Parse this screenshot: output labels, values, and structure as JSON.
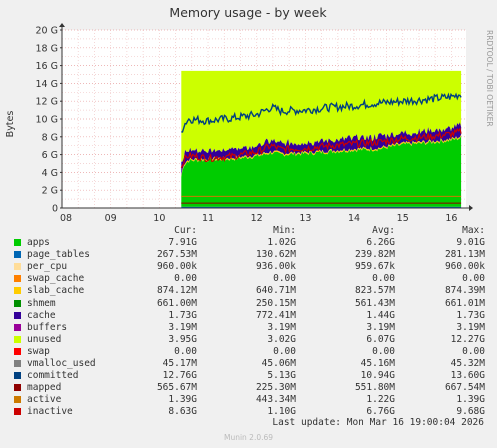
{
  "chart_data": {
    "type": "area",
    "title": "Memory usage - by week",
    "ylabel": "Bytes",
    "side_label": "RRDTOOL / TOBI OETIKER",
    "ylim": [
      0,
      20
    ],
    "y_ticks": [
      "0",
      "2 G",
      "4 G",
      "6 G",
      "8 G",
      "10 G",
      "12 G",
      "14 G",
      "16 G",
      "18 G",
      "20 G"
    ],
    "xlim": [
      8,
      16.3
    ],
    "x_ticks": [
      "08",
      "09",
      "10",
      "11",
      "12",
      "13",
      "14",
      "15",
      "16"
    ],
    "data_start": 10.45,
    "series": [
      {
        "name": "apps",
        "color": "#00cc00",
        "cur": "7.91G",
        "min": "1.02G",
        "avg": "6.26G",
        "max": "9.01G",
        "x": [
          10.45,
          10.5,
          10.6,
          11.0,
          11.5,
          12.0,
          12.3,
          12.5,
          13.0,
          13.5,
          14.0,
          14.5,
          15.0,
          15.5,
          16.0,
          16.2
        ],
        "y": [
          3.5,
          4.8,
          5.3,
          5.4,
          5.5,
          5.8,
          6.2,
          6.0,
          6.1,
          6.3,
          6.5,
          6.6,
          7.1,
          7.3,
          7.6,
          7.9
        ]
      },
      {
        "name": "page_tables",
        "color": "#0066b3",
        "cur": "267.53M",
        "min": "130.62M",
        "avg": "239.82M",
        "max": "281.13M"
      },
      {
        "name": "per_cpu",
        "color": "#ffdd99",
        "cur": "960.00k",
        "min": "936.00k",
        "avg": "959.67k",
        "max": "960.00k"
      },
      {
        "name": "swap_cache",
        "color": "#ff8000",
        "cur": "0.00",
        "min": "0.00",
        "avg": "0.00",
        "max": "0.00"
      },
      {
        "name": "slab_cache",
        "color": "#ffcc00",
        "cur": "874.12M",
        "min": "640.71M",
        "avg": "823.57M",
        "max": "874.39M"
      },
      {
        "name": "shmem",
        "color": "#008f00",
        "cur": "661.00M",
        "min": "250.15M",
        "avg": "561.43M",
        "max": "661.01M"
      },
      {
        "name": "cache",
        "color": "#330099",
        "cur": "1.73G",
        "min": "772.41M",
        "avg": "1.44G",
        "max": "1.73G"
      },
      {
        "name": "buffers",
        "color": "#990099",
        "cur": "3.19M",
        "min": "3.19M",
        "avg": "3.19M",
        "max": "3.19M"
      },
      {
        "name": "unused",
        "color": "#ccff00",
        "cur": "3.95G",
        "min": "3.02G",
        "avg": "6.07G",
        "max": "12.27G"
      },
      {
        "name": "swap",
        "color": "#ff0000",
        "cur": "0.00",
        "min": "0.00",
        "avg": "0.00",
        "max": "0.00"
      },
      {
        "name": "vmalloc_used",
        "color": "#808080",
        "cur": "45.17M",
        "min": "45.06M",
        "avg": "45.16M",
        "max": "45.32M"
      },
      {
        "name": "committed",
        "color": "#004080",
        "cur": "12.76G",
        "min": "5.13G",
        "avg": "10.94G",
        "max": "13.60G",
        "x": [
          10.45,
          10.5,
          10.6,
          11.0,
          11.5,
          12.0,
          12.3,
          12.5,
          13.0,
          13.5,
          14.0,
          14.5,
          15.0,
          15.5,
          16.0,
          16.2
        ],
        "y": [
          8.5,
          9.3,
          10.0,
          9.8,
          10.1,
          10.5,
          11.3,
          10.9,
          11.0,
          11.3,
          11.5,
          11.8,
          12.0,
          12.2,
          12.5,
          12.8
        ]
      },
      {
        "name": "mapped",
        "color": "#8f0000",
        "cur": "565.67M",
        "min": "225.30M",
        "avg": "551.80M",
        "max": "667.54M"
      },
      {
        "name": "active",
        "color": "#cc7a00",
        "cur": "1.39G",
        "min": "443.34M",
        "avg": "1.22G",
        "max": "1.39G"
      },
      {
        "name": "inactive",
        "color": "#cc0000",
        "cur": "8.63G",
        "min": "1.10G",
        "avg": "6.76G",
        "max": "9.68G",
        "x": [
          10.45,
          10.5,
          10.6,
          11.0,
          11.5,
          12.0,
          12.3,
          12.5,
          13.0,
          13.5,
          14.0,
          14.5,
          15.0,
          15.5,
          16.0,
          16.2
        ],
        "y": [
          4.5,
          5.4,
          5.9,
          5.6,
          5.8,
          6.3,
          7.0,
          6.6,
          6.7,
          7.0,
          7.2,
          7.4,
          7.8,
          8.0,
          8.3,
          8.6
        ]
      }
    ],
    "stack_total": 15.4,
    "legend_headers": {
      "cur": "Cur:",
      "min": "Min:",
      "avg": "Avg:",
      "max": "Max:"
    },
    "last_update": "Last update: Mon Mar 16 19:00:04 2026",
    "footer": "Munin 2.0.69"
  }
}
